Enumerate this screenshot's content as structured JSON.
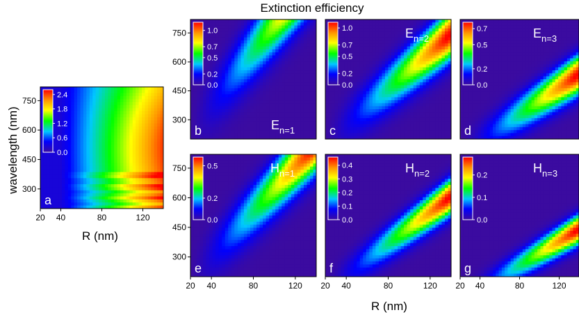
{
  "chart_data": {
    "type": "heatmap",
    "title": "Extinction efficiency",
    "xlabel": "R (nm)",
    "ylabel": "wavelength (nm)",
    "colormap": [
      "#3b0ba0",
      "#0000ff",
      "#00c8ff",
      "#00ff00",
      "#ffff00",
      "#ff9600",
      "#ff0000"
    ],
    "panels": [
      {
        "id": "a",
        "label": "a",
        "mode": "",
        "xlim": [
          20,
          140
        ],
        "ylim": [
          200,
          820
        ],
        "x_ticks": [
          "20",
          "40",
          "80",
          "120"
        ],
        "y_ticks": [
          "300",
          "450",
          "600",
          "750"
        ],
        "cb_ticks": [
          "0.0",
          "0.6",
          "1.2",
          "1.8",
          "2.4"
        ],
        "cb_max": 2.6,
        "model": "total"
      },
      {
        "id": "b",
        "label": "b",
        "mode": "E",
        "n": "n=1",
        "xlim": [
          20,
          140
        ],
        "ylim": [
          200,
          820
        ],
        "y_ticks": [
          "300",
          "450",
          "600",
          "750"
        ],
        "cb_ticks": [
          "0.0",
          "0.2",
          "0.5",
          "0.7",
          "1.0"
        ],
        "cb_max": 1.15,
        "model": "mode",
        "peak": 1.12,
        "slope": 6.8,
        "width": 150,
        "ridge_offset": 0,
        "cut": 0
      },
      {
        "id": "c",
        "label": "c",
        "mode": "E",
        "n": "n=2",
        "xlim": [
          20,
          140
        ],
        "ylim": [
          200,
          820
        ],
        "cb_ticks": [
          "0.0",
          "0.2",
          "0.5",
          "0.7",
          "1.0"
        ],
        "cb_max": 1.1,
        "model": "mode",
        "peak": 1.08,
        "slope": 4.6,
        "width": 120,
        "ridge_offset": -20,
        "cut": 0
      },
      {
        "id": "d",
        "label": "d",
        "mode": "E",
        "n": "n=3",
        "xlim": [
          20,
          140
        ],
        "ylim": [
          200,
          820
        ],
        "cb_ticks": [
          "0.0",
          "0.2",
          "0.5",
          "0.7"
        ],
        "cb_max": 0.78,
        "model": "mode",
        "peak": 0.76,
        "slope": 3.4,
        "width": 95,
        "ridge_offset": -60,
        "cut": 0
      },
      {
        "id": "e",
        "label": "e",
        "mode": "H",
        "n": "n=1",
        "xlim": [
          20,
          140
        ],
        "ylim": [
          200,
          820
        ],
        "x_ticks": [
          "20",
          "40",
          "80",
          "120"
        ],
        "y_ticks": [
          "300",
          "450",
          "600",
          "750"
        ],
        "cb_ticks": [
          "0.0",
          "0.2",
          "0.5"
        ],
        "cb_max": 0.58,
        "model": "mode",
        "peak": 0.57,
        "slope": 5.6,
        "width": 130,
        "ridge_offset": -30,
        "cut": 0
      },
      {
        "id": "f",
        "label": "f",
        "mode": "H",
        "n": "n=2",
        "xlim": [
          20,
          140
        ],
        "ylim": [
          200,
          820
        ],
        "x_ticks": [
          "20",
          "40",
          "80",
          "120"
        ],
        "cb_ticks": [
          "0.0",
          "0.1",
          "0.2",
          "0.3",
          "0.4"
        ],
        "cb_max": 0.46,
        "model": "mode",
        "peak": 0.45,
        "slope": 3.9,
        "width": 85,
        "ridge_offset": -60,
        "cut": 0
      },
      {
        "id": "g",
        "label": "g",
        "mode": "H",
        "n": "n=3",
        "xlim": [
          20,
          140
        ],
        "ylim": [
          200,
          820
        ],
        "x_ticks": [
          "20",
          "40",
          "80",
          "120"
        ],
        "cb_ticks": [
          "0.0",
          "0.1",
          "0.2"
        ],
        "cb_max": 0.28,
        "model": "mode",
        "peak": 0.27,
        "slope": 3.0,
        "width": 70,
        "ridge_offset": -100,
        "cut": 0
      }
    ]
  }
}
